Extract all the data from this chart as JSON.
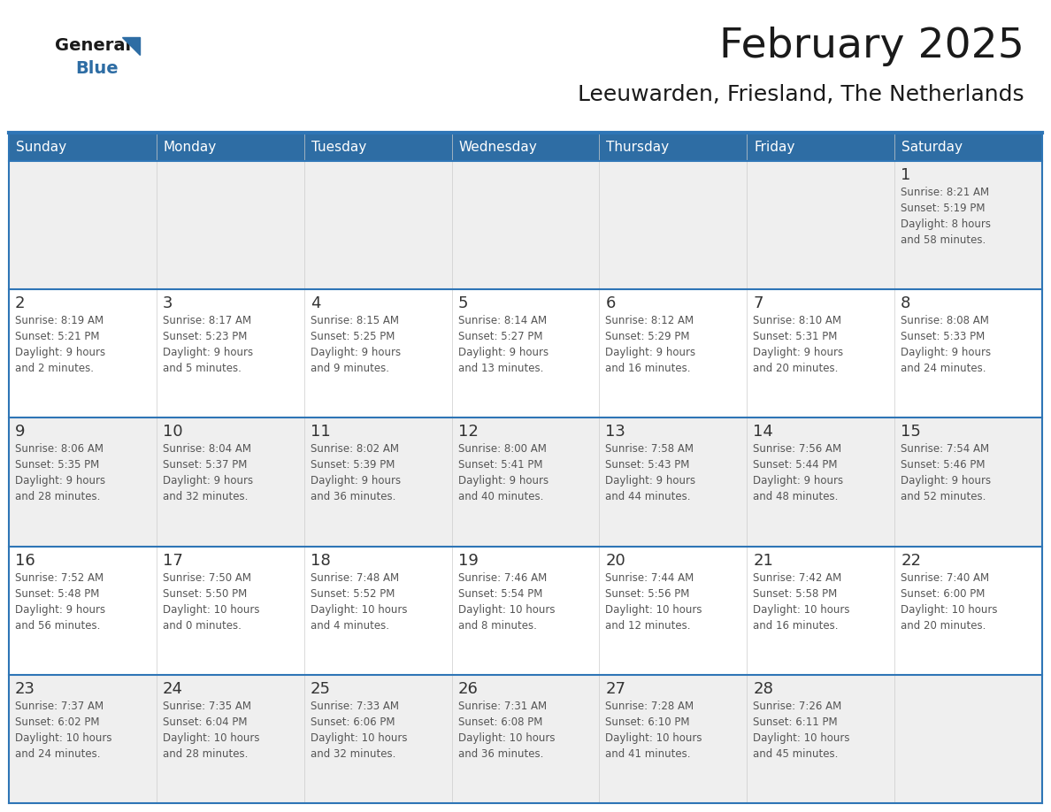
{
  "title": "February 2025",
  "subtitle": "Leeuwarden, Friesland, The Netherlands",
  "days_of_week": [
    "Sunday",
    "Monday",
    "Tuesday",
    "Wednesday",
    "Thursday",
    "Friday",
    "Saturday"
  ],
  "header_bg": "#2E6DA4",
  "header_text": "#FFFFFF",
  "cell_bg_odd": "#EFEFEF",
  "cell_bg_even": "#FFFFFF",
  "border_color": "#2E75B6",
  "text_color": "#444444",
  "day_num_color": "#333333",
  "info_text_color": "#555555",
  "logo_general_color": "#1A1A1A",
  "logo_blue_color": "#2E6DA4",
  "weeks": [
    [
      {
        "day": null,
        "info": null
      },
      {
        "day": null,
        "info": null
      },
      {
        "day": null,
        "info": null
      },
      {
        "day": null,
        "info": null
      },
      {
        "day": null,
        "info": null
      },
      {
        "day": null,
        "info": null
      },
      {
        "day": 1,
        "info": "Sunrise: 8:21 AM\nSunset: 5:19 PM\nDaylight: 8 hours\nand 58 minutes."
      }
    ],
    [
      {
        "day": 2,
        "info": "Sunrise: 8:19 AM\nSunset: 5:21 PM\nDaylight: 9 hours\nand 2 minutes."
      },
      {
        "day": 3,
        "info": "Sunrise: 8:17 AM\nSunset: 5:23 PM\nDaylight: 9 hours\nand 5 minutes."
      },
      {
        "day": 4,
        "info": "Sunrise: 8:15 AM\nSunset: 5:25 PM\nDaylight: 9 hours\nand 9 minutes."
      },
      {
        "day": 5,
        "info": "Sunrise: 8:14 AM\nSunset: 5:27 PM\nDaylight: 9 hours\nand 13 minutes."
      },
      {
        "day": 6,
        "info": "Sunrise: 8:12 AM\nSunset: 5:29 PM\nDaylight: 9 hours\nand 16 minutes."
      },
      {
        "day": 7,
        "info": "Sunrise: 8:10 AM\nSunset: 5:31 PM\nDaylight: 9 hours\nand 20 minutes."
      },
      {
        "day": 8,
        "info": "Sunrise: 8:08 AM\nSunset: 5:33 PM\nDaylight: 9 hours\nand 24 minutes."
      }
    ],
    [
      {
        "day": 9,
        "info": "Sunrise: 8:06 AM\nSunset: 5:35 PM\nDaylight: 9 hours\nand 28 minutes."
      },
      {
        "day": 10,
        "info": "Sunrise: 8:04 AM\nSunset: 5:37 PM\nDaylight: 9 hours\nand 32 minutes."
      },
      {
        "day": 11,
        "info": "Sunrise: 8:02 AM\nSunset: 5:39 PM\nDaylight: 9 hours\nand 36 minutes."
      },
      {
        "day": 12,
        "info": "Sunrise: 8:00 AM\nSunset: 5:41 PM\nDaylight: 9 hours\nand 40 minutes."
      },
      {
        "day": 13,
        "info": "Sunrise: 7:58 AM\nSunset: 5:43 PM\nDaylight: 9 hours\nand 44 minutes."
      },
      {
        "day": 14,
        "info": "Sunrise: 7:56 AM\nSunset: 5:44 PM\nDaylight: 9 hours\nand 48 minutes."
      },
      {
        "day": 15,
        "info": "Sunrise: 7:54 AM\nSunset: 5:46 PM\nDaylight: 9 hours\nand 52 minutes."
      }
    ],
    [
      {
        "day": 16,
        "info": "Sunrise: 7:52 AM\nSunset: 5:48 PM\nDaylight: 9 hours\nand 56 minutes."
      },
      {
        "day": 17,
        "info": "Sunrise: 7:50 AM\nSunset: 5:50 PM\nDaylight: 10 hours\nand 0 minutes."
      },
      {
        "day": 18,
        "info": "Sunrise: 7:48 AM\nSunset: 5:52 PM\nDaylight: 10 hours\nand 4 minutes."
      },
      {
        "day": 19,
        "info": "Sunrise: 7:46 AM\nSunset: 5:54 PM\nDaylight: 10 hours\nand 8 minutes."
      },
      {
        "day": 20,
        "info": "Sunrise: 7:44 AM\nSunset: 5:56 PM\nDaylight: 10 hours\nand 12 minutes."
      },
      {
        "day": 21,
        "info": "Sunrise: 7:42 AM\nSunset: 5:58 PM\nDaylight: 10 hours\nand 16 minutes."
      },
      {
        "day": 22,
        "info": "Sunrise: 7:40 AM\nSunset: 6:00 PM\nDaylight: 10 hours\nand 20 minutes."
      }
    ],
    [
      {
        "day": 23,
        "info": "Sunrise: 7:37 AM\nSunset: 6:02 PM\nDaylight: 10 hours\nand 24 minutes."
      },
      {
        "day": 24,
        "info": "Sunrise: 7:35 AM\nSunset: 6:04 PM\nDaylight: 10 hours\nand 28 minutes."
      },
      {
        "day": 25,
        "info": "Sunrise: 7:33 AM\nSunset: 6:06 PM\nDaylight: 10 hours\nand 32 minutes."
      },
      {
        "day": 26,
        "info": "Sunrise: 7:31 AM\nSunset: 6:08 PM\nDaylight: 10 hours\nand 36 minutes."
      },
      {
        "day": 27,
        "info": "Sunrise: 7:28 AM\nSunset: 6:10 PM\nDaylight: 10 hours\nand 41 minutes."
      },
      {
        "day": 28,
        "info": "Sunrise: 7:26 AM\nSunset: 6:11 PM\nDaylight: 10 hours\nand 45 minutes."
      },
      {
        "day": null,
        "info": null
      }
    ]
  ]
}
